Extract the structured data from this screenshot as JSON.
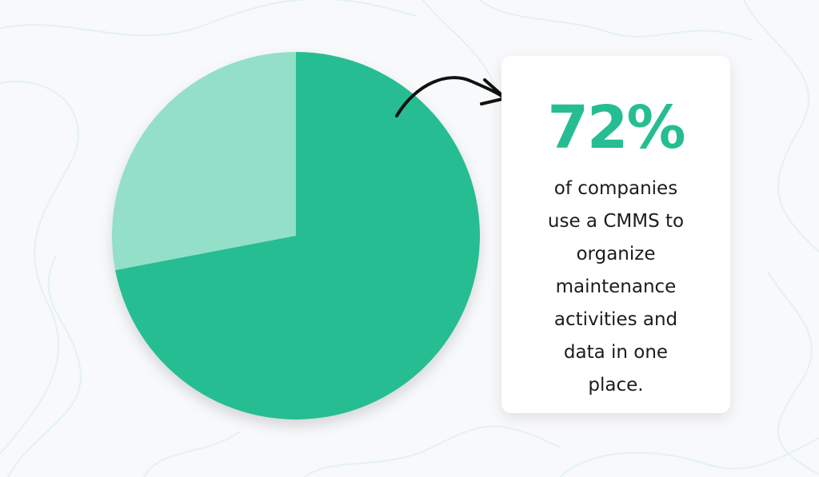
{
  "colors": {
    "primary": "#26bd93",
    "secondary": "#93dfc8",
    "background": "#f8f9fb",
    "pattern": "#e2f3ee",
    "text": "#1c1c1c",
    "card": "#ffffff"
  },
  "chart_data": {
    "type": "pie",
    "slices": [
      {
        "value": 72,
        "color": "#26bd93"
      },
      {
        "value": 28,
        "color": "#93dfc8"
      }
    ],
    "start_angle_deg": 0,
    "direction": "clockwise"
  },
  "callout": {
    "value": "72%",
    "caption_lines": [
      "of companies",
      "use a CMMS to",
      "organize",
      "maintenance",
      "activities and",
      "data in one",
      "place."
    ]
  }
}
